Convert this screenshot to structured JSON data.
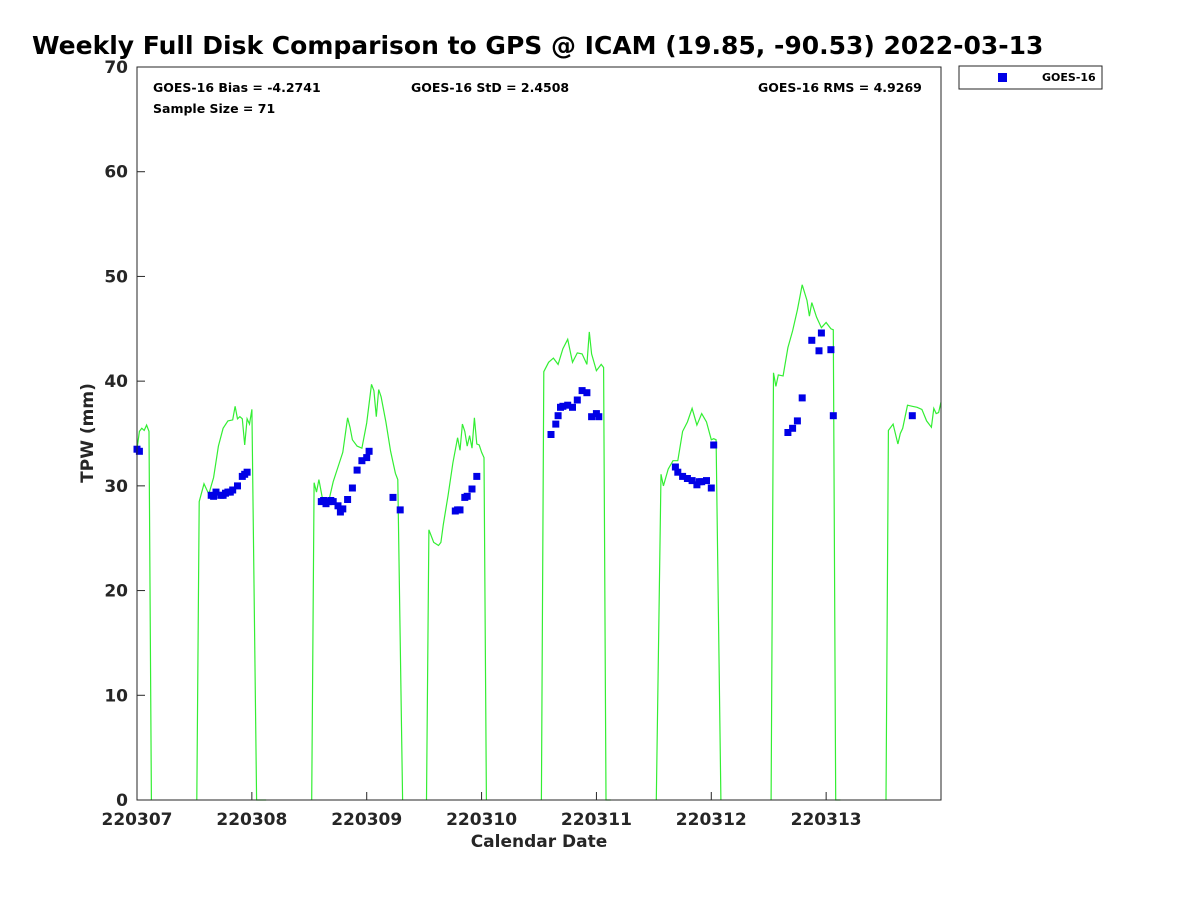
{
  "chart_data": {
    "type": "scatter",
    "title": "Weekly Full Disk Comparison to GPS @ ICAM (19.85, -90.53) 2022-03-13",
    "xlabel": "Calendar Date",
    "ylabel": "TPW (mm)",
    "xlim": [
      "2022-03-07T00:00",
      "2022-03-14T00:00"
    ],
    "ylim": [
      0,
      70
    ],
    "x_ticks": [
      "220307",
      "220308",
      "220309",
      "220310",
      "220311",
      "220312",
      "220313"
    ],
    "y_ticks": [
      0,
      10,
      20,
      30,
      40,
      50,
      60,
      70
    ],
    "grid": false,
    "legend_position": "outside top-right",
    "stats": {
      "bias": "GOES-16 Bias = -4.2741",
      "std": "GOES-16 StD = 2.4508",
      "rms": "GOES-16 RMS = 4.9269",
      "sample": "Sample Size = 71"
    },
    "legend": [
      "GOES-16"
    ],
    "colors": {
      "goes": "#0000e6",
      "gps": "#33ee33"
    },
    "series": [
      {
        "name": "GOES-16",
        "marker": "square",
        "x": [
          "2022-03-07T00:00",
          "2022-03-07T00:30",
          "2022-03-07T15:30",
          "2022-03-07T16:00",
          "2022-03-07T16:30",
          "2022-03-07T17:30",
          "2022-03-07T18:00",
          "2022-03-07T18:30",
          "2022-03-07T19:00",
          "2022-03-07T19:30",
          "2022-03-07T20:00",
          "2022-03-07T21:00",
          "2022-03-07T22:00",
          "2022-03-07T22:30",
          "2022-03-07T23:00",
          "2022-03-08T14:30",
          "2022-03-08T15:00",
          "2022-03-08T15:30",
          "2022-03-08T16:00",
          "2022-03-08T16:30",
          "2022-03-08T17:00",
          "2022-03-08T18:00",
          "2022-03-08T18:30",
          "2022-03-08T19:00",
          "2022-03-08T20:00",
          "2022-03-08T21:00",
          "2022-03-08T22:00",
          "2022-03-08T23:00",
          "2022-03-09T00:00",
          "2022-03-09T00:30",
          "2022-03-09T05:30",
          "2022-03-09T07:00",
          "2022-03-09T18:30",
          "2022-03-09T19:00",
          "2022-03-09T19:30",
          "2022-03-09T20:30",
          "2022-03-09T21:00",
          "2022-03-09T22:00",
          "2022-03-09T23:00",
          "2022-03-10T14:30",
          "2022-03-10T15:30",
          "2022-03-10T16:00",
          "2022-03-10T16:30",
          "2022-03-10T17:00",
          "2022-03-10T18:00",
          "2022-03-10T19:00",
          "2022-03-10T20:00",
          "2022-03-10T21:00",
          "2022-03-10T22:00",
          "2022-03-10T23:00",
          "2022-03-11T00:00",
          "2022-03-11T00:30",
          "2022-03-11T16:30",
          "2022-03-11T17:00",
          "2022-03-11T18:00",
          "2022-03-11T19:00",
          "2022-03-11T20:00",
          "2022-03-11T21:00",
          "2022-03-11T21:30",
          "2022-03-11T22:00",
          "2022-03-11T23:00",
          "2022-03-12T00:00",
          "2022-03-12T00:30",
          "2022-03-12T16:00",
          "2022-03-12T17:00",
          "2022-03-12T18:00",
          "2022-03-12T19:00",
          "2022-03-12T21:00",
          "2022-03-12T22:30",
          "2022-03-12T23:00",
          "2022-03-13T01:00",
          "2022-03-13T01:30",
          "2022-03-13T18:00"
        ],
        "y": [
          33.5,
          33.3,
          29.1,
          29.0,
          29.4,
          29.1,
          29.1,
          29.3,
          29.4,
          29.4,
          29.6,
          30.0,
          30.9,
          31.1,
          31.3,
          28.5,
          28.6,
          28.3,
          28.5,
          28.6,
          28.5,
          28.1,
          27.5,
          27.8,
          28.7,
          29.8,
          31.5,
          32.4,
          32.7,
          33.3,
          28.9,
          27.7,
          27.6,
          27.7,
          27.7,
          28.9,
          29.0,
          29.7,
          30.9,
          34.9,
          35.9,
          36.7,
          37.5,
          37.6,
          37.7,
          37.5,
          38.2,
          39.1,
          38.9,
          36.6,
          36.9,
          36.6,
          31.8,
          31.3,
          30.9,
          30.7,
          30.5,
          30.1,
          30.4,
          30.4,
          30.5,
          29.8,
          33.9,
          35.1,
          35.5,
          36.2,
          38.4,
          43.9,
          42.9,
          44.6,
          43.0,
          36.7,
          36.7
        ],
        "comment_none": null
      },
      {
        "name": "GPS",
        "style": "line",
        "segments": [
          {
            "x": [
              "2022-03-07T00:00",
              "2022-03-07T00:30",
              "2022-03-07T01:00",
              "2022-03-07T01:30",
              "2022-03-07T02:00",
              "2022-03-07T02:30",
              "2022-03-07T03:00"
            ],
            "y": [
              33.5,
              35.2,
              35.5,
              35.3,
              35.8,
              35.2,
              0
            ]
          },
          {
            "x": [
              "2022-03-07T12:30",
              "2022-03-07T13:00",
              "2022-03-07T14:00",
              "2022-03-07T15:00",
              "2022-03-07T16:00",
              "2022-03-07T17:00",
              "2022-03-07T18:00",
              "2022-03-07T19:00",
              "2022-03-07T20:00",
              "2022-03-07T20:30",
              "2022-03-07T21:00",
              "2022-03-07T21:30",
              "2022-03-07T22:00",
              "2022-03-07T22:30",
              "2022-03-07T23:00",
              "2022-03-07T23:30",
              "2022-03-08T00:00",
              "2022-03-08T01:00",
              "2022-03-08T02:00",
              "2022-03-08T03:00"
            ],
            "y": [
              0,
              28.5,
              30.2,
              29.2,
              30.8,
              33.8,
              35.5,
              36.2,
              36.3,
              37.6,
              36.4,
              36.6,
              36.4,
              33.9,
              36.4,
              35.9,
              37.3,
              0,
              0,
              0
            ]
          },
          {
            "x": [
              "2022-03-08T12:30",
              "2022-03-08T13:00",
              "2022-03-08T13:30",
              "2022-03-08T14:00",
              "2022-03-08T15:00",
              "2022-03-08T16:00",
              "2022-03-08T17:00",
              "2022-03-08T18:00",
              "2022-03-08T19:00",
              "2022-03-08T20:00",
              "2022-03-08T20:30",
              "2022-03-08T21:00",
              "2022-03-08T22:00",
              "2022-03-08T23:00",
              "2022-03-09T00:00",
              "2022-03-09T01:00",
              "2022-03-09T01:30",
              "2022-03-09T02:00",
              "2022-03-09T02:30",
              "2022-03-09T03:00",
              "2022-03-09T04:00",
              "2022-03-09T05:00",
              "2022-03-09T06:00",
              "2022-03-09T06:30",
              "2022-03-09T07:30"
            ],
            "y": [
              0,
              30.3,
              29.4,
              30.6,
              28.2,
              28.4,
              30.4,
              31.8,
              33.2,
              36.5,
              35.6,
              34.4,
              33.8,
              33.6,
              36.0,
              39.7,
              39.1,
              36.6,
              39.2,
              38.5,
              36.1,
              33.3,
              31.2,
              30.6,
              0
            ]
          },
          {
            "x": [
              "2022-03-09T12:30",
              "2022-03-09T13:00",
              "2022-03-09T14:00",
              "2022-03-09T15:00",
              "2022-03-09T15:30",
              "2022-03-09T16:00",
              "2022-03-09T17:00",
              "2022-03-09T18:00",
              "2022-03-09T19:00",
              "2022-03-09T19:30",
              "2022-03-09T20:00",
              "2022-03-09T20:30",
              "2022-03-09T21:00",
              "2022-03-09T21:30",
              "2022-03-09T22:00",
              "2022-03-09T22:30",
              "2022-03-09T23:00",
              "2022-03-09T23:30",
              "2022-03-10T00:00",
              "2022-03-10T00:30",
              "2022-03-10T01:00"
            ],
            "y": [
              0,
              25.8,
              24.6,
              24.3,
              24.6,
              26.3,
              29.1,
              32.2,
              34.6,
              33.4,
              35.9,
              35.2,
              33.8,
              34.8,
              33.6,
              36.5,
              34.0,
              33.9,
              33.2,
              32.7,
              0
            ]
          },
          {
            "x": [
              "2022-03-10T12:30",
              "2022-03-10T13:00",
              "2022-03-10T14:00",
              "2022-03-10T15:00",
              "2022-03-10T16:00",
              "2022-03-10T17:00",
              "2022-03-10T18:00",
              "2022-03-10T19:00",
              "2022-03-10T20:00",
              "2022-03-10T21:00",
              "2022-03-10T22:00",
              "2022-03-10T22:30",
              "2022-03-10T23:00",
              "2022-03-11T00:00",
              "2022-03-11T01:00",
              "2022-03-11T01:30",
              "2022-03-11T02:00",
              "2022-03-11T03:00"
            ],
            "y": [
              0,
              40.9,
              41.8,
              42.2,
              41.6,
              43.1,
              44.0,
              41.8,
              42.7,
              42.6,
              41.6,
              44.7,
              42.6,
              41.0,
              41.6,
              41.3,
              0,
              0
            ]
          },
          {
            "x": [
              "2022-03-11T12:30",
              "2022-03-11T13:30",
              "2022-03-11T14:00",
              "2022-03-11T15:00",
              "2022-03-11T16:00",
              "2022-03-11T17:00",
              "2022-03-11T18:00",
              "2022-03-11T19:00",
              "2022-03-11T20:00",
              "2022-03-11T21:00",
              "2022-03-11T22:00",
              "2022-03-11T22:30",
              "2022-03-11T23:00",
              "2022-03-12T00:00",
              "2022-03-12T00:30",
              "2022-03-12T01:00",
              "2022-03-12T02:00"
            ],
            "y": [
              0,
              31.1,
              30.0,
              31.6,
              32.4,
              32.4,
              35.2,
              36.1,
              37.4,
              35.8,
              36.9,
              36.5,
              36.1,
              34.4,
              34.5,
              34.4,
              0
            ]
          },
          {
            "x": [
              "2022-03-12T12:30",
              "2022-03-12T13:00",
              "2022-03-12T13:30",
              "2022-03-12T14:00",
              "2022-03-12T15:00",
              "2022-03-12T16:00",
              "2022-03-12T17:00",
              "2022-03-12T18:00",
              "2022-03-12T19:00",
              "2022-03-12T20:00",
              "2022-03-12T20:30",
              "2022-03-12T21:00",
              "2022-03-12T22:00",
              "2022-03-12T23:00",
              "2022-03-13T00:00",
              "2022-03-13T01:00",
              "2022-03-13T01:30",
              "2022-03-13T02:00",
              "2022-03-13T03:00"
            ],
            "y": [
              0,
              40.8,
              39.5,
              40.6,
              40.5,
              43.2,
              44.8,
              46.8,
              49.2,
              47.7,
              46.2,
              47.5,
              46.1,
              45.1,
              45.6,
              45.0,
              44.9,
              0,
              0
            ]
          },
          {
            "x": [
              "2022-03-13T12:30",
              "2022-03-13T13:00",
              "2022-03-13T14:00",
              "2022-03-13T15:00",
              "2022-03-13T15:30",
              "2022-03-13T16:00",
              "2022-03-13T17:00",
              "2022-03-13T18:00",
              "2022-03-13T19:00",
              "2022-03-13T20:00",
              "2022-03-13T21:00",
              "2022-03-13T22:00",
              "2022-03-13T22:30",
              "2022-03-13T23:00",
              "2022-03-13T23:30",
              "2022-03-14T00:00"
            ],
            "y": [
              0,
              35.3,
              35.9,
              34.0,
              35.0,
              35.5,
              37.7,
              37.6,
              37.5,
              37.3,
              36.2,
              35.6,
              37.4,
              36.9,
              37.0,
              38.0
            ]
          }
        ]
      }
    ]
  }
}
